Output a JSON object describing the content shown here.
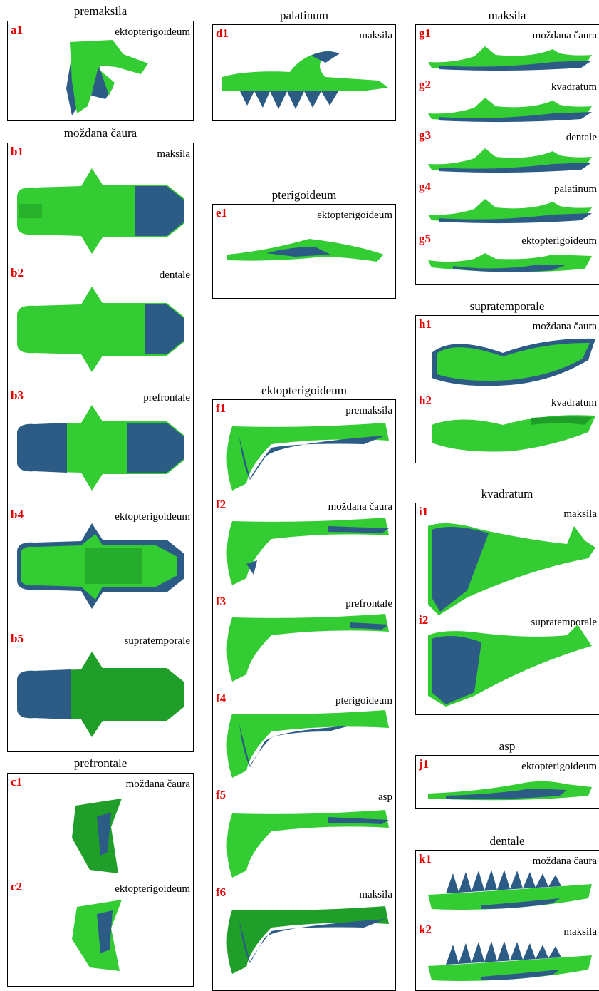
{
  "colors": {
    "green": "#33cc33",
    "green_dark": "#1f9e2a",
    "blue": "#2c5b86",
    "blue_dark": "#1a3a5c",
    "id_red": "#e60000"
  },
  "panels": {
    "a": {
      "title": "premaksila",
      "items": [
        {
          "id": "a1",
          "label": "ektopterigoideum"
        }
      ]
    },
    "b": {
      "title": "moždana čaura",
      "items": [
        {
          "id": "b1",
          "label": "maksila"
        },
        {
          "id": "b2",
          "label": "dentale"
        },
        {
          "id": "b3",
          "label": "prefrontale"
        },
        {
          "id": "b4",
          "label": "ektopterigoideum"
        },
        {
          "id": "b5",
          "label": "supratemporale"
        }
      ]
    },
    "c": {
      "title": "prefrontale",
      "items": [
        {
          "id": "c1",
          "label": "moždana čaura"
        },
        {
          "id": "c2",
          "label": "ektopterigoideum"
        }
      ]
    },
    "d": {
      "title": "palatinum",
      "items": [
        {
          "id": "d1",
          "label": "maksila"
        }
      ]
    },
    "e": {
      "title": "pterigoideum",
      "items": [
        {
          "id": "e1",
          "label": "ektopterigoideum"
        }
      ]
    },
    "f": {
      "title": "ektopterigoideum",
      "items": [
        {
          "id": "f1",
          "label": "premaksila"
        },
        {
          "id": "f2",
          "label": "moždana čaura"
        },
        {
          "id": "f3",
          "label": "prefrontale"
        },
        {
          "id": "f4",
          "label": "pterigoideum"
        },
        {
          "id": "f5",
          "label": "asp"
        },
        {
          "id": "f6",
          "label": "maksila"
        }
      ]
    },
    "g": {
      "title": "maksila",
      "items": [
        {
          "id": "g1",
          "label": "moždana čaura"
        },
        {
          "id": "g2",
          "label": "kvadratum"
        },
        {
          "id": "g3",
          "label": "dentale"
        },
        {
          "id": "g4",
          "label": "palatinum"
        },
        {
          "id": "g5",
          "label": "ektopterigoideum"
        }
      ]
    },
    "h": {
      "title": "supratemporale",
      "items": [
        {
          "id": "h1",
          "label": "moždana čaura"
        },
        {
          "id": "h2",
          "label": "kvadratum"
        }
      ]
    },
    "i": {
      "title": "kvadratum",
      "items": [
        {
          "id": "i1",
          "label": "maksila"
        },
        {
          "id": "i2",
          "label": "supratemporale"
        }
      ]
    },
    "j": {
      "title": "asp",
      "items": [
        {
          "id": "j1",
          "label": "ektopterigoideum"
        }
      ]
    },
    "k": {
      "title": "dentale",
      "items": [
        {
          "id": "k1",
          "label": "moždana čaura"
        },
        {
          "id": "k2",
          "label": "maksila"
        }
      ]
    }
  }
}
